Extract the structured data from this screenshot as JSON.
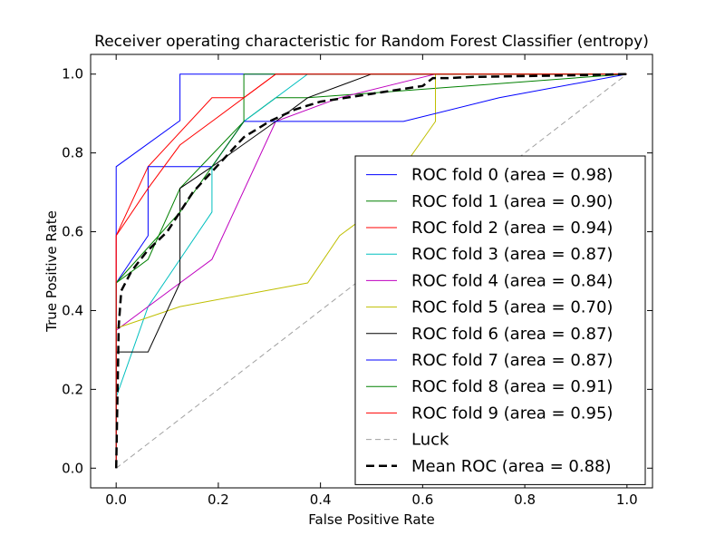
{
  "chart_data": {
    "type": "line",
    "title": "Receiver operating characteristic for Random Forest Classifier (entropy)",
    "xlabel": "False Positive Rate",
    "ylabel": "True Positive Rate",
    "xlim": [
      -0.05,
      1.05
    ],
    "ylim": [
      -0.05,
      1.05
    ],
    "xticks": [
      "0.0",
      "0.2",
      "0.4",
      "0.6",
      "0.8",
      "1.0"
    ],
    "yticks": [
      "0.0",
      "0.2",
      "0.4",
      "0.6",
      "0.8",
      "1.0"
    ],
    "grid": false,
    "legend_position": "lower-right",
    "series": [
      {
        "name": "ROC fold 0 (area = 0.98)",
        "color": "#0000ff",
        "style": "solid",
        "x": [
          0,
          0,
          0.125,
          0.125,
          1.0
        ],
        "y": [
          0,
          0.765,
          0.882,
          1.0,
          1.0
        ]
      },
      {
        "name": "ROC fold 1 (area = 0.90)",
        "color": "#008000",
        "style": "solid",
        "x": [
          0,
          0,
          0.0625,
          0.125,
          0.25,
          0.3125,
          0.375,
          1.0
        ],
        "y": [
          0,
          0.47,
          0.53,
          0.71,
          0.88,
          0.94,
          0.94,
          1.0
        ]
      },
      {
        "name": "ROC fold 2 (area = 0.94)",
        "color": "#ff0000",
        "style": "solid",
        "x": [
          0,
          0,
          0.0625,
          0.1875,
          0.25,
          0.3125,
          1.0
        ],
        "y": [
          0,
          0.59,
          0.765,
          0.94,
          0.94,
          1.0,
          1.0
        ]
      },
      {
        "name": "ROC fold 3 (area = 0.87)",
        "color": "#00bfbf",
        "style": "solid",
        "x": [
          0,
          0,
          0.0625,
          0.125,
          0.1875,
          0.1875,
          0.25,
          0.375,
          1.0
        ],
        "y": [
          0,
          0.18,
          0.41,
          0.53,
          0.65,
          0.765,
          0.88,
          1.0,
          1.0
        ]
      },
      {
        "name": "ROC fold 4 (area = 0.84)",
        "color": "#bf00bf",
        "style": "solid",
        "x": [
          0,
          0,
          0.125,
          0.1875,
          0.3125,
          0.4375,
          0.625,
          1.0
        ],
        "y": [
          0,
          0.35,
          0.47,
          0.53,
          0.88,
          0.94,
          1.0,
          1.0
        ]
      },
      {
        "name": "ROC fold 5 (area = 0.70)",
        "color": "#bfbf00",
        "style": "solid",
        "x": [
          0,
          0,
          0.125,
          0.375,
          0.4375,
          0.5,
          0.625,
          0.625,
          1.0
        ],
        "y": [
          0,
          0.355,
          0.41,
          0.47,
          0.59,
          0.65,
          0.88,
          1.0,
          1.0
        ]
      },
      {
        "name": "ROC fold 6 (area = 0.87)",
        "color": "#000000",
        "style": "solid",
        "x": [
          0,
          0,
          0.0625,
          0.125,
          0.125,
          0.1875,
          0.3125,
          0.375,
          0.5,
          0.625,
          1.0
        ],
        "y": [
          0,
          0.295,
          0.295,
          0.47,
          0.71,
          0.765,
          0.88,
          0.94,
          1.0,
          1.0,
          1.0
        ]
      },
      {
        "name": "ROC fold 7 (area = 0.87)",
        "color": "#0000ff",
        "style": "solid",
        "x": [
          0,
          0,
          0.0625,
          0.0625,
          0.1875,
          0.25,
          0.5625,
          0.75,
          1.0
        ],
        "y": [
          0,
          0.47,
          0.59,
          0.765,
          0.765,
          0.88,
          0.88,
          0.94,
          1.0
        ]
      },
      {
        "name": "ROC fold 8 (area = 0.91)",
        "color": "#008000",
        "style": "solid",
        "x": [
          0,
          0,
          0.125,
          0.25,
          0.25,
          0.375,
          0.375,
          1.0
        ],
        "y": [
          0,
          0.47,
          0.65,
          0.88,
          1.0,
          1.0,
          1.0,
          1.0
        ]
      },
      {
        "name": "ROC fold 9 (area = 0.95)",
        "color": "#ff0000",
        "style": "solid",
        "x": [
          0,
          0,
          0.0625,
          0.125,
          0.1875,
          0.3125,
          1.0
        ],
        "y": [
          0,
          0.59,
          0.71,
          0.82,
          0.88,
          1.0,
          1.0
        ]
      },
      {
        "name": "Luck",
        "color": "#a0a0a0",
        "style": "dashed",
        "x": [
          0,
          1
        ],
        "y": [
          0,
          1
        ]
      },
      {
        "name": "Mean ROC (area = 0.88)",
        "color": "#000000",
        "style": "dashed-bold",
        "x": [
          0,
          0.005,
          0.01,
          0.03,
          0.06,
          0.1,
          0.15,
          0.2,
          0.25,
          0.3,
          0.35,
          0.4,
          0.45,
          0.5,
          0.55,
          0.6,
          0.62,
          0.65,
          0.7,
          0.8,
          0.9,
          1.0
        ],
        "y": [
          0.0,
          0.36,
          0.45,
          0.5,
          0.55,
          0.6,
          0.7,
          0.77,
          0.84,
          0.88,
          0.91,
          0.93,
          0.94,
          0.95,
          0.96,
          0.97,
          0.99,
          0.99,
          0.993,
          0.995,
          0.997,
          1.0
        ]
      }
    ]
  }
}
